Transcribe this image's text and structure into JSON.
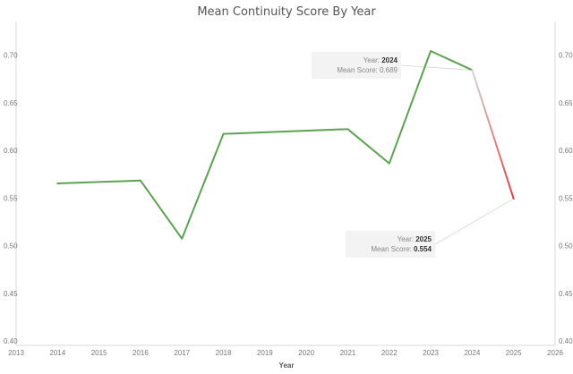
{
  "chart_data": {
    "type": "line",
    "title": "Mean Continuity Score By Year",
    "xlabel": "Year",
    "ylabel": "",
    "xlim": [
      2013,
      2026
    ],
    "ylim": [
      0.4,
      0.74
    ],
    "x_ticks": [
      "2013",
      "2014",
      "2015",
      "2016",
      "2017",
      "2018",
      "2019",
      "2020",
      "2021",
      "2022",
      "2023",
      "2024",
      "2025",
      "2026"
    ],
    "y_ticks": [
      "0.40",
      "0.45",
      "0.50",
      "0.55",
      "0.60",
      "0.65",
      "0.70"
    ],
    "grid": false,
    "series": [
      {
        "x": [
          2014,
          2016,
          2017,
          2018,
          2021,
          2022,
          2023,
          2024,
          2025
        ],
        "values": [
          0.57,
          0.573,
          0.512,
          0.622,
          0.627,
          0.591,
          0.709,
          0.689,
          0.554
        ]
      }
    ],
    "colors": {
      "line": "#5ea152",
      "highlight": "#e0403f",
      "faded": "#cccccc"
    },
    "tooltips": [
      {
        "year_label": "Year:",
        "year": "2024",
        "score_label": "Mean Score:",
        "score": "0.689"
      },
      {
        "year_label": "Year:",
        "year": "2025",
        "score_label": "Mean Score:",
        "score": "0.554"
      }
    ]
  }
}
